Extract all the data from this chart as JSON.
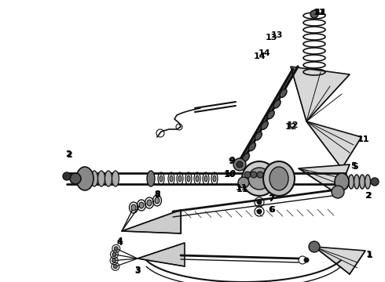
{
  "background_color": "#ffffff",
  "line_color": "#111111",
  "label_color": "#000000",
  "figsize": [
    4.9,
    3.6
  ],
  "dpi": 100,
  "font_size": 8
}
